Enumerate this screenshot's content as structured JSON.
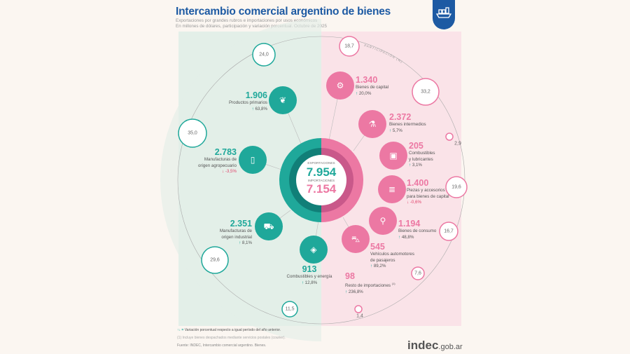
{
  "header": {
    "title": "Intercambio comercial argentino de bienes",
    "subtitle1": "Exportaciones por grandes rubros e importaciones por usos económicos",
    "subtitle2": "En millones de dólares, participación y variación porcentual. Octubre de 2025"
  },
  "colors": {
    "exports": "#1fa89a",
    "imports": "#ec78a3",
    "title": "#1d5aa3",
    "decrease": "#e0436b"
  },
  "center": {
    "exports_label": "EXPORTACIONES",
    "exports_value": "7.954",
    "imports_label": "IMPORTACIONES",
    "imports_value": "7.154"
  },
  "arc_label": "PARTICIPACIÓN (%)",
  "exports": [
    {
      "icon": "wheat-icon",
      "value": "1.906",
      "label1": "Productos primarios",
      "label2": "",
      "arrow": "↑",
      "change": "63,8%",
      "share": "24,0",
      "dir": "up"
    },
    {
      "icon": "bottle-icon",
      "value": "2.783",
      "label1": "Manufacturas de",
      "label2": "origen agropecuario",
      "arrow": "↓",
      "change": "-3,5%",
      "share": "35,0",
      "dir": "down"
    },
    {
      "icon": "truck-icon",
      "value": "2.351",
      "label1": "Manufacturas de",
      "label2": "origen industrial",
      "arrow": "↑",
      "change": "8,1%",
      "share": "29,6",
      "dir": "up"
    },
    {
      "icon": "fuel-drop-icon",
      "value": "913",
      "label1": "Combustibles y energía",
      "label2": "",
      "arrow": "↑",
      "change": "12,8%",
      "share": "11,5",
      "dir": "up"
    }
  ],
  "imports": [
    {
      "icon": "tractor-icon",
      "value": "1.340",
      "label1": "Bienes de capital",
      "label2": "",
      "arrow": "↑",
      "change": "20,0%",
      "share": "18,7"
    },
    {
      "icon": "flask-icon",
      "value": "2.372",
      "label1": "Bienes intermedios",
      "label2": "",
      "arrow": "↑",
      "change": "5,7%",
      "share": "33,2"
    },
    {
      "icon": "jerrycan-icon",
      "value": "205",
      "label1": "Combustibles",
      "label2": "y lubricantes",
      "arrow": "↑",
      "change": "3,1%",
      "share": "2,9"
    },
    {
      "icon": "screw-icon",
      "value": "1.400",
      "label1": "Piezas y accesorios",
      "label2": "para bienes de capital",
      "arrow": "↓",
      "change": "-0,6%",
      "share": "19,6"
    },
    {
      "icon": "bicycle-icon",
      "value": "1.194",
      "label1": "Bienes de consumo",
      "label2": "",
      "arrow": "↑",
      "change": "48,8%",
      "share": "16,7"
    },
    {
      "icon": "car-icon",
      "value": "545",
      "label1": "Vehículos automotores",
      "label2": "de pasajeros",
      "arrow": "↑",
      "change": "89,2%",
      "share": "7,6"
    },
    {
      "icon": "",
      "value": "98",
      "label1": "Resto de importaciones",
      "label1_note": "(1)",
      "label2": "",
      "arrow": "↑",
      "change": "236,8%",
      "share": "1,4"
    }
  ],
  "footer": {
    "legend": "Variación porcentual respecto a igual período del año anterior.",
    "legend_symbol": "↑↓ =",
    "note": "(1) Incluye bienes despachados mediante servicios postales (courier).",
    "source": "Fuente: INDEC, Intercambio comercial argentino. Bienes.",
    "logo": "indec",
    "logo_suffix": ".gob.ar"
  }
}
